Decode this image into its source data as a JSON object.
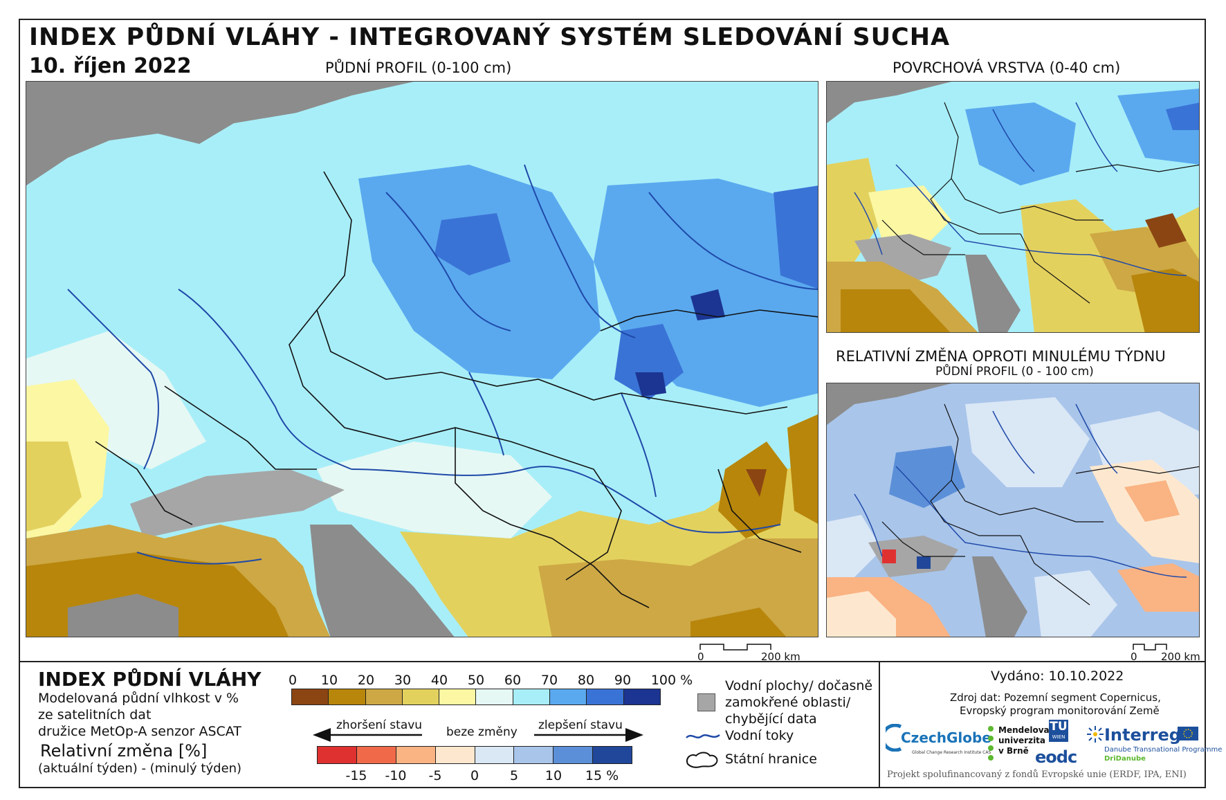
{
  "header": {
    "title": "INDEX PŮDNÍ VLÁHY - INTEGROVANÝ SYSTÉM SLEDOVÁNÍ SUCHA",
    "date": "10. říjen 2022"
  },
  "maps": {
    "main_caption": "PŮDNÍ PROFIL (0-100 cm)",
    "surface_caption": "POVRCHOVÁ VRSTVA (0-40 cm)",
    "change_caption": "RELATIVNÍ ZMĚNA OPROTI MINULÉMU TÝDNU",
    "change_subcaption": "PŮDNÍ PROFIL (0 - 100 cm)"
  },
  "scalebars": {
    "main": {
      "zero": "0",
      "length": "200 km"
    },
    "side": {
      "zero": "0",
      "length": "200 km"
    }
  },
  "legend": {
    "title": "INDEX PŮDNÍ VLÁHY",
    "desc_lines": [
      "Modelovaná půdní vlhkost v %",
      "ze satelitních dat",
      "družice MetOp-A senzor ASCAT"
    ],
    "change_title": "Relativní změna [%]",
    "change_desc": "(aktuální týden) - (minulý týden)",
    "moisture_ticks": [
      "0",
      "10",
      "20",
      "30",
      "40",
      "50",
      "60",
      "70",
      "80",
      "90",
      "100 %"
    ],
    "moisture_colors": [
      "#8b4513",
      "#b8860b",
      "#cda845",
      "#e3d15e",
      "#fbf7a3",
      "#e6f8f4",
      "#a8eef8",
      "#5aa9ef",
      "#3a73d6",
      "#1c3592"
    ],
    "arrow_worse": "zhoršení stavu",
    "arrow_nochange": "beze změny",
    "arrow_better": "zlepšení stavu",
    "change_ticks": [
      "-15",
      "-10",
      "-5",
      "0",
      "5",
      "10",
      "15 %"
    ],
    "change_colors": [
      "#e03131",
      "#f06a4a",
      "#fab383",
      "#fde8cf",
      "#dae7f5",
      "#a9c5ea",
      "#5b8fd8",
      "#21479a"
    ],
    "key_water_lines": [
      "Vodní plochy/ dočasně",
      "zamokřené oblasti/",
      "chybějící data"
    ],
    "key_rivers": "Vodní toky",
    "key_borders": "Státní hranice"
  },
  "info": {
    "issued": "Vydáno: 10.10.2022",
    "source_lines": [
      "Zdroj dat: Pozemní segment Copernicus,",
      "Evropský program monitorování Země"
    ],
    "funding": "Projekt spolufinancovaný z fondů Evropské unie (ERDF, IPA, ENI)"
  },
  "logos": {
    "czechglobe": "CzechGlobe",
    "czechglobe_sub": "Global Change Research Institute CAS",
    "mendel_lines": [
      "Mendelova",
      "univerzita",
      "v Brně"
    ],
    "tu": "TU",
    "tu_sub": "WIEN",
    "eodc": "eodc",
    "interreg": "Interreg",
    "interreg_sub": "Danube Transnational Programme",
    "dridanube": "DriDanube"
  },
  "colors": {
    "gray_land": "#8c8c8c",
    "river": "#1f49a8",
    "border": "#111111"
  }
}
